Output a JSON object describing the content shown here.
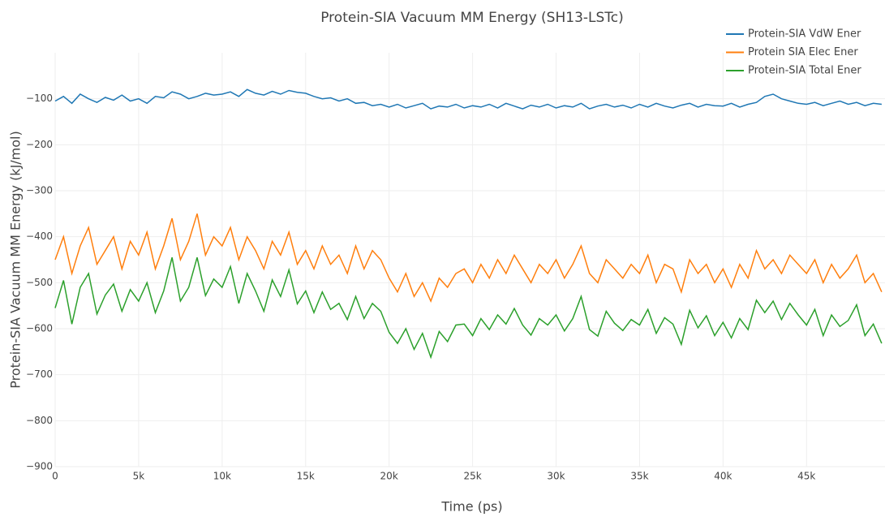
{
  "chart_data": {
    "type": "line",
    "title": "Protein-SIA Vacuum MM Energy (SH13-LSTc)",
    "x_label": "Time (ps)",
    "y_label": "Protein-SIA Vacuum MM Energy (kJ/mol)",
    "legend": "top-right",
    "grid": true,
    "xlim": [
      0,
      49700
    ],
    "ylim": [
      -900,
      0
    ],
    "xticks": [
      0,
      {
        "value": 5000,
        "label": "5k"
      },
      {
        "value": 10000,
        "label": "10k"
      },
      {
        "value": 15000,
        "label": "15k"
      },
      {
        "value": 20000,
        "label": "20k"
      },
      {
        "value": 25000,
        "label": "25k"
      },
      {
        "value": 30000,
        "label": "30k"
      },
      {
        "value": 35000,
        "label": "35k"
      },
      {
        "value": 40000,
        "label": "40k"
      },
      {
        "value": 45000,
        "label": "45k"
      }
    ],
    "yticks": [
      {
        "value": -900,
        "label": "−900"
      },
      {
        "value": -800,
        "label": "−800"
      },
      {
        "value": -700,
        "label": "−700"
      },
      {
        "value": -600,
        "label": "−600"
      },
      {
        "value": -500,
        "label": "−500"
      },
      {
        "value": -400,
        "label": "−400"
      },
      {
        "value": -300,
        "label": "−300"
      },
      {
        "value": -200,
        "label": "−200"
      },
      {
        "value": -100,
        "label": "−100"
      }
    ],
    "x": [
      0,
      500,
      1000,
      1500,
      2000,
      2500,
      3000,
      3500,
      4000,
      4500,
      5000,
      5500,
      6000,
      6500,
      7000,
      7500,
      8000,
      8500,
      9000,
      9500,
      10000,
      10500,
      11000,
      11500,
      12000,
      12500,
      13000,
      13500,
      14000,
      14500,
      15000,
      15500,
      16000,
      16500,
      17000,
      17500,
      18000,
      18500,
      19000,
      19500,
      20000,
      20500,
      21000,
      21500,
      22000,
      22500,
      23000,
      23500,
      24000,
      24500,
      25000,
      25500,
      26000,
      26500,
      27000,
      27500,
      28000,
      28500,
      29000,
      29500,
      30000,
      30500,
      31000,
      31500,
      32000,
      32500,
      33000,
      33500,
      34000,
      34500,
      35000,
      35500,
      36000,
      36500,
      37000,
      37500,
      38000,
      38500,
      39000,
      39500,
      40000,
      40500,
      41000,
      41500,
      42000,
      42500,
      43000,
      43500,
      44000,
      44500,
      45000,
      45500,
      46000,
      46500,
      47000,
      47500,
      48000,
      48500,
      49000,
      49500
    ],
    "series": [
      {
        "name": "Protein-SIA VdW Ener",
        "color": "#1f77b4",
        "values": [
          -105,
          -95,
          -110,
          -90,
          -100,
          -108,
          -97,
          -103,
          -92,
          -105,
          -100,
          -110,
          -95,
          -98,
          -85,
          -90,
          -100,
          -95,
          -88,
          -92,
          -90,
          -85,
          -95,
          -80,
          -88,
          -92,
          -84,
          -90,
          -82,
          -86,
          -88,
          -95,
          -100,
          -98,
          -105,
          -100,
          -110,
          -108,
          -115,
          -112,
          -118,
          -112,
          -120,
          -115,
          -110,
          -122,
          -116,
          -118,
          -112,
          -120,
          -115,
          -118,
          -112,
          -120,
          -110,
          -116,
          -122,
          -114,
          -118,
          -112,
          -120,
          -115,
          -118,
          -110,
          -122,
          -116,
          -112,
          -118,
          -114,
          -120,
          -112,
          -118,
          -110,
          -116,
          -120,
          -114,
          -110,
          -118,
          -112,
          -115,
          -116,
          -110,
          -118,
          -112,
          -108,
          -95,
          -90,
          -100,
          -105,
          -110,
          -112,
          -108,
          -115,
          -110,
          -105,
          -112,
          -108,
          -115,
          -110,
          -112
        ]
      },
      {
        "name": "Protein SIA Elec Ener",
        "color": "#ff7f0e",
        "values": [
          -450,
          -400,
          -480,
          -420,
          -380,
          -460,
          -430,
          -400,
          -470,
          -410,
          -440,
          -390,
          -470,
          -420,
          -360,
          -450,
          -410,
          -350,
          -440,
          -400,
          -420,
          -380,
          -450,
          -400,
          -430,
          -470,
          -410,
          -440,
          -390,
          -460,
          -430,
          -470,
          -420,
          -460,
          -440,
          -480,
          -420,
          -470,
          -430,
          -450,
          -490,
          -520,
          -480,
          -530,
          -500,
          -540,
          -490,
          -510,
          -480,
          -470,
          -500,
          -460,
          -490,
          -450,
          -480,
          -440,
          -470,
          -500,
          -460,
          -480,
          -450,
          -490,
          -460,
          -420,
          -480,
          -500,
          -450,
          -470,
          -490,
          -460,
          -480,
          -440,
          -500,
          -460,
          -470,
          -520,
          -450,
          -480,
          -460,
          -500,
          -470,
          -510,
          -460,
          -490,
          -430,
          -470,
          -450,
          -480,
          -440,
          -460,
          -480,
          -450,
          -500,
          -460,
          -490,
          -470,
          -440,
          -500,
          -480,
          -520
        ]
      },
      {
        "name": "Protein-SIA Total Ener",
        "color": "#2ca02c",
        "values": [
          -555,
          -495,
          -590,
          -510,
          -480,
          -568,
          -527,
          -503,
          -562,
          -515,
          -540,
          -500,
          -565,
          -518,
          -445,
          -540,
          -510,
          -445,
          -528,
          -492,
          -510,
          -465,
          -545,
          -480,
          -518,
          -562,
          -494,
          -530,
          -472,
          -546,
          -518,
          -565,
          -520,
          -558,
          -545,
          -580,
          -530,
          -578,
          -545,
          -562,
          -608,
          -632,
          -600,
          -645,
          -610,
          -662,
          -606,
          -628,
          -592,
          -590,
          -615,
          -578,
          -602,
          -570,
          -590,
          -556,
          -592,
          -614,
          -578,
          -592,
          -570,
          -605,
          -578,
          -530,
          -602,
          -616,
          -562,
          -588,
          -604,
          -580,
          -592,
          -558,
          -610,
          -576,
          -590,
          -634,
          -560,
          -598,
          -572,
          -615,
          -586,
          -620,
          -578,
          -602,
          -538,
          -565,
          -540,
          -580,
          -545,
          -570,
          -592,
          -558,
          -615,
          -570,
          -595,
          -582,
          -548,
          -615,
          -590,
          -632
        ]
      }
    ]
  }
}
